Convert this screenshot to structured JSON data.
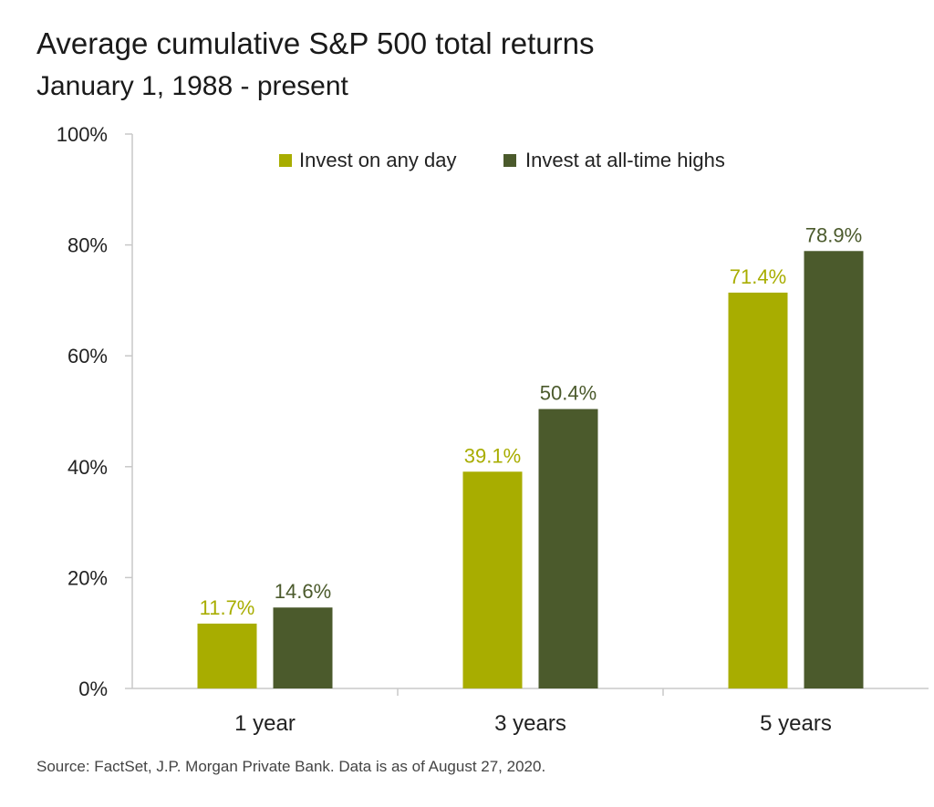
{
  "title": "Average cumulative S&P 500 total returns",
  "subtitle": "January 1, 1988 - present",
  "footnote": "Source: FactSet, J.P. Morgan Private Bank. Data is as of August 27, 2020.",
  "colors": {
    "any_day": "#a8ad00",
    "all_time_highs": "#4b5a2c",
    "axis": "#c8c8c8"
  },
  "chart_data": {
    "type": "bar",
    "title": "Average cumulative S&P 500 total returns",
    "subtitle": "January 1, 1988 - present",
    "categories": [
      "1 year",
      "3 years",
      "5 years"
    ],
    "series": [
      {
        "name": "Invest on any day",
        "values": [
          11.7,
          39.1,
          71.4
        ],
        "labels": [
          "11.7%",
          "39.1%",
          "71.4%"
        ]
      },
      {
        "name": "Invest at all-time highs",
        "values": [
          14.6,
          50.4,
          78.9
        ],
        "labels": [
          "14.6%",
          "50.4%",
          "78.9%"
        ]
      }
    ],
    "ylim": [
      0,
      100
    ],
    "yticks": [
      0,
      20,
      40,
      60,
      80,
      100
    ],
    "ytick_labels": [
      "0%",
      "20%",
      "40%",
      "60%",
      "80%",
      "100%"
    ],
    "grid": false,
    "legend_position": "top-right"
  }
}
